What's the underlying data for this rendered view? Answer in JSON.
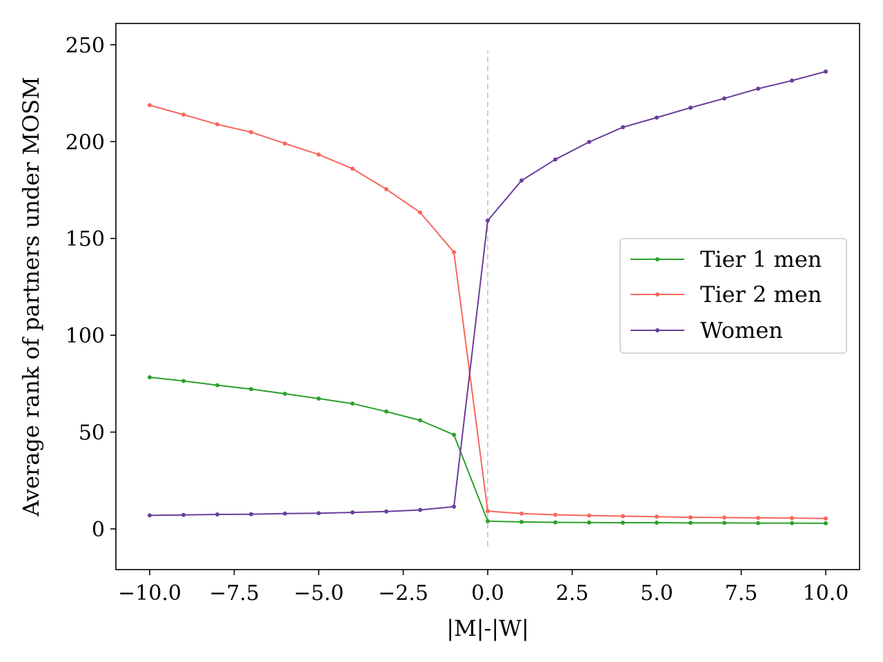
{
  "chart_data": {
    "type": "line",
    "xlabel": "|M|-|W|",
    "ylabel": "Average rank of partners under MOSM",
    "xlim": [
      -11,
      11
    ],
    "ylim": [
      -21,
      261
    ],
    "xticks": [
      -10.0,
      -7.5,
      -5.0,
      -2.5,
      0.0,
      2.5,
      5.0,
      7.5,
      10.0
    ],
    "xtick_labels": [
      "−10.0",
      "−7.5",
      "−5.0",
      "−2.5",
      "0.0",
      "2.5",
      "5.0",
      "7.5",
      "10.0"
    ],
    "yticks": [
      0,
      50,
      100,
      150,
      200,
      250
    ],
    "ytick_labels": [
      "0",
      "50",
      "100",
      "150",
      "200",
      "250"
    ],
    "grid": false,
    "legend_position": "center-right",
    "reference_line": {
      "x": 0,
      "y_range": [
        -9,
        247
      ],
      "style": "dashed",
      "color": "#cccccc"
    },
    "x": [
      -10,
      -9,
      -8,
      -7,
      -6,
      -5,
      -4,
      -3,
      -2,
      -1,
      0,
      1,
      2,
      3,
      4,
      5,
      6,
      7,
      8,
      9,
      10
    ],
    "series": [
      {
        "name": "Tier 1 men",
        "color": "#2ca02c",
        "values": [
          78.3,
          76.4,
          74.2,
          72.2,
          69.8,
          67.3,
          64.7,
          60.6,
          56.1,
          48.6,
          4.0,
          3.6,
          3.4,
          3.3,
          3.2,
          3.2,
          3.1,
          3.1,
          3.0,
          3.0,
          2.9
        ]
      },
      {
        "name": "Tier 2 men",
        "color": "#f8665d",
        "values": [
          218.8,
          213.9,
          208.9,
          204.9,
          199.0,
          193.3,
          186.0,
          175.4,
          163.4,
          142.9,
          9.2,
          7.9,
          7.3,
          6.9,
          6.6,
          6.3,
          6.0,
          5.9,
          5.7,
          5.6,
          5.4
        ]
      },
      {
        "name": "Women",
        "color": "#6a3d9a",
        "values": [
          7.0,
          7.2,
          7.5,
          7.6,
          7.9,
          8.1,
          8.5,
          9.0,
          9.8,
          11.5,
          159.2,
          179.9,
          190.8,
          199.8,
          207.4,
          212.4,
          217.5,
          222.3,
          227.3,
          231.5,
          236.2
        ]
      }
    ]
  }
}
